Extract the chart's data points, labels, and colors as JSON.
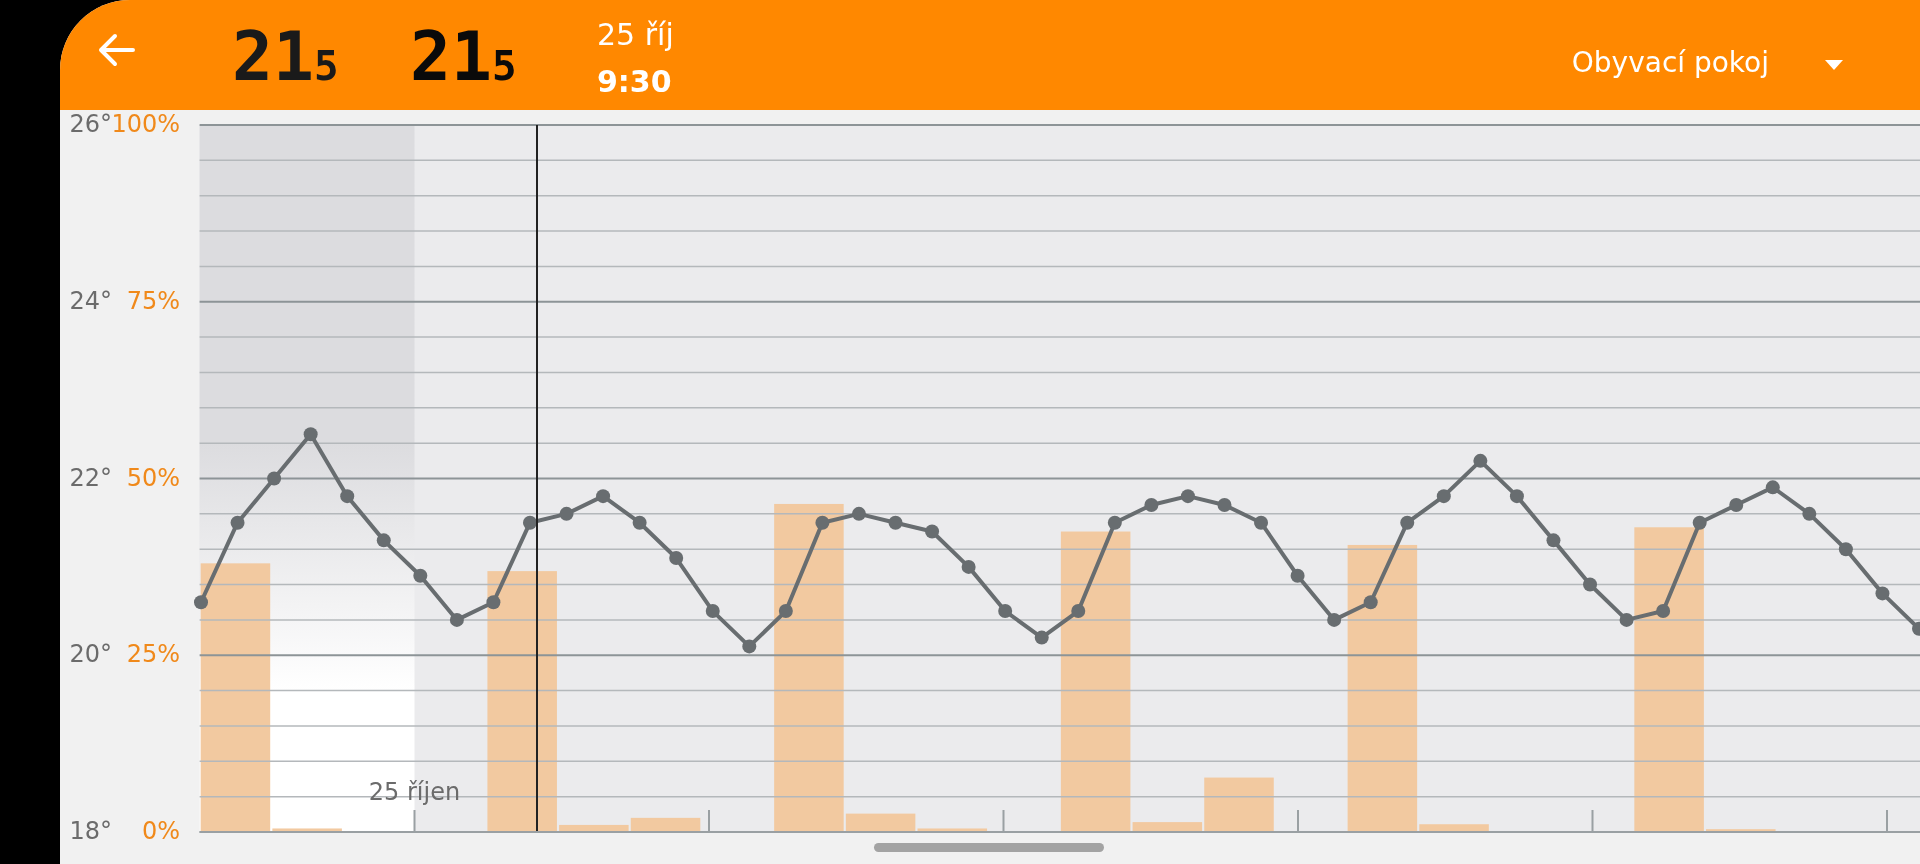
{
  "chart_data": [
    {
      "type": "line",
      "title": "Obyvací pokoj",
      "annotations": [
        "21$_{5}$",
        "21$_{5}$",
        "25 říj",
        "9:30",
        "25 říjen"
      ],
      "categories": [
        null,
        null,
        null,
        null,
        null,
        null,
        null,
        null,
        null,
        null,
        null,
        null,
        null,
        null,
        null,
        null,
        null,
        null,
        null,
        null,
        null,
        null,
        null,
        null,
        null,
        null,
        null,
        null,
        null,
        null,
        null,
        null,
        null,
        null,
        null,
        null,
        null,
        null,
        null,
        null,
        null,
        null,
        null,
        null,
        null,
        null,
        null,
        null
      ],
      "ylim": [
        18,
        26
      ],
      "yticks": [
        {
          "value": 18,
          "label": "18°"
        },
        {
          "value": 18.4,
          "label": null
        },
        {
          "value": 18.8,
          "label": null
        },
        {
          "value": 19.2,
          "label": null
        },
        {
          "value": 19.6,
          "label": null
        },
        {
          "value": 20,
          "label": "20°"
        },
        {
          "value": 20.4,
          "label": null
        },
        {
          "value": 20.8,
          "label": null
        },
        {
          "value": 21.2,
          "label": null
        },
        {
          "value": 21.6,
          "label": null
        },
        {
          "value": 22,
          "label": "22°"
        },
        {
          "value": 22.4,
          "label": null
        },
        {
          "value": 22.8,
          "label": null
        },
        {
          "value": 23.2,
          "label": null
        },
        {
          "value": 23.6,
          "label": null
        },
        {
          "value": 24,
          "label": "24°"
        },
        {
          "value": 24.4,
          "label": null
        },
        {
          "value": 24.8,
          "label": null
        },
        {
          "value": 25.2,
          "label": null
        },
        {
          "value": 25.6,
          "label": null
        },
        {
          "value": 26,
          "label": "26°"
        }
      ],
      "grid": "y",
      "marker": "circle",
      "tick_labels": "y",
      "series": [
        {
          "color": "#686d70",
          "values": [
            20.6,
            21.5,
            22.0,
            22.5,
            21.8,
            21.3,
            20.9,
            20.4,
            20.6,
            21.5,
            21.6,
            21.8,
            21.5,
            21.1,
            20.5,
            20.1,
            20.5,
            21.5,
            21.6,
            21.5,
            21.4,
            21.0,
            20.5,
            20.2,
            20.5,
            21.5,
            21.7,
            21.8,
            21.7,
            21.5,
            20.9,
            20.4,
            20.6,
            21.5,
            21.8,
            22.2,
            21.8,
            21.3,
            20.8,
            20.4,
            20.5,
            21.5,
            21.7,
            21.9,
            21.6,
            21.2,
            20.7,
            20.3
          ]
        }
      ]
    },
    {
      "type": "bar",
      "tick_labels": "y",
      "categories": [
        null,
        null,
        null,
        null,
        null,
        null,
        null,
        null,
        null,
        null,
        null,
        null,
        null,
        null,
        null,
        null,
        null,
        null,
        null,
        null,
        null,
        null,
        null,
        null
      ],
      "ylim": [
        0,
        100
      ],
      "yticks": [
        {
          "value": 0,
          "label": "0%"
        },
        {
          "value": 25,
          "label": "25%"
        },
        {
          "value": 50,
          "label": "50%"
        },
        {
          "value": 75,
          "label": "75%"
        },
        {
          "value": 100,
          "label": "100%"
        }
      ],
      "series": [
        {
          "color": "#f2c9a0",
          "values": [
            38.0,
            0.5,
            0,
            0,
            36.9,
            1.0,
            2.0,
            0,
            46.4,
            2.6,
            0.5,
            0,
            42.5,
            1.4,
            7.7,
            0,
            40.6,
            1.1,
            0,
            0,
            43.1,
            0.4,
            0,
            0
          ]
        }
      ]
    }
  ]
}
